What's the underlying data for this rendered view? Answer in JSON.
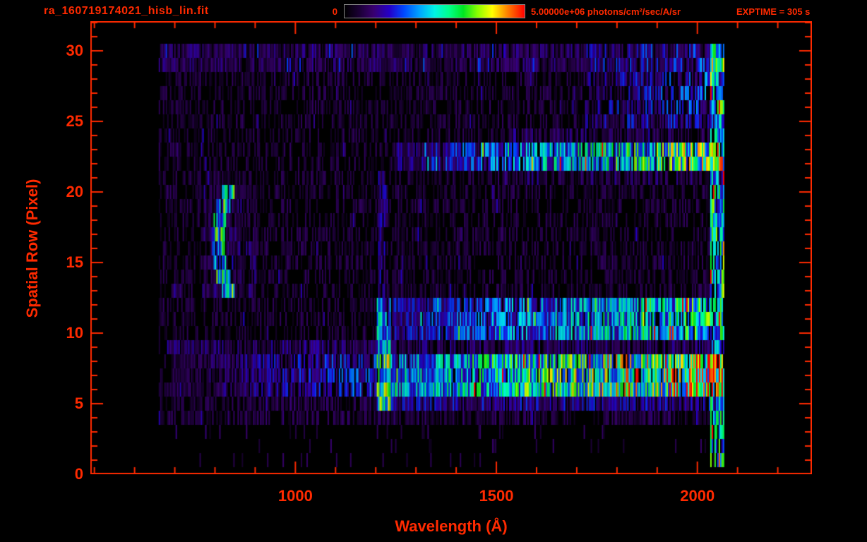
{
  "header": {
    "title": "ra_160719174021_hisb_lin.fit",
    "colorbar_min": "0",
    "colorbar_max": "5.00000e+06 photons/cm²/sec/A/sr",
    "exptime": "EXPTIME = 305 s"
  },
  "chart_data": {
    "type": "heatmap",
    "title": "ra_160719174021_hisb_lin.fit",
    "xlabel": "Wavelength (Å)",
    "ylabel": "Spatial Row (Pixel)",
    "xlim": [
      490,
      2285
    ],
    "ylim": [
      0,
      32.1
    ],
    "xticks": [
      1000,
      1500,
      2000
    ],
    "xtick_minor_step": 100,
    "yticks": [
      0,
      5,
      10,
      15,
      20,
      25,
      30
    ],
    "ytick_minor_step": 1,
    "axis_color": "#ff2a00",
    "colorbar": {
      "min": 0,
      "max": 5000000,
      "min_label": "0",
      "max_label": "5.00000e+06 photons/cm²/sec/A/sr",
      "units": "photons/cm²/sec/A/sr"
    },
    "exptime_seconds": 305,
    "colormap_stops": [
      [
        0.0,
        "#000000"
      ],
      [
        0.08,
        "#1a0033"
      ],
      [
        0.16,
        "#38006e"
      ],
      [
        0.25,
        "#2400c8"
      ],
      [
        0.33,
        "#0048ff"
      ],
      [
        0.42,
        "#00a8ff"
      ],
      [
        0.5,
        "#00f2e4"
      ],
      [
        0.58,
        "#00ff8c"
      ],
      [
        0.66,
        "#00e622"
      ],
      [
        0.74,
        "#8cff00"
      ],
      [
        0.82,
        "#ffff00"
      ],
      [
        0.9,
        "#ff8800"
      ],
      [
        1.0,
        "#ff0000"
      ]
    ],
    "seed": 20160719,
    "grid_cell_angstrom": 3.5,
    "data_extent": {
      "wavelength": [
        660,
        2066
      ],
      "rows": [
        0,
        30
      ]
    },
    "features": [
      {
        "name": "background-speckle",
        "x": [
          660,
          2066
        ],
        "y": [
          4,
          30
        ],
        "base": 0.09,
        "density": 0.5,
        "spike": 0.05
      },
      {
        "name": "bottom-sparse",
        "x": [
          700,
          2060
        ],
        "y": [
          1,
          3
        ],
        "base": 0.11,
        "density": 0.05
      },
      {
        "name": "top-rows-band",
        "x": [
          660,
          2066
        ],
        "y": [
          29,
          30
        ],
        "base": 0.13,
        "density": 0.85,
        "spike": 0.08
      },
      {
        "name": "upper-right-enhance",
        "x": [
          1720,
          2066
        ],
        "y": [
          25,
          30
        ],
        "base": 0.18,
        "end": 0.3,
        "density": 0.55
      },
      {
        "name": "row22-23-band",
        "x": [
          1250,
          2062
        ],
        "y": [
          22,
          23
        ],
        "base": 0.16,
        "end": 0.62,
        "density": 0.95,
        "spike": 0.04
      },
      {
        "name": "row21-24-fringe",
        "x": [
          1500,
          2062
        ],
        "y": [
          21,
          24
        ],
        "base": 0.14,
        "density": 0.4
      },
      {
        "name": "row10-12-band",
        "x": [
          1240,
          2062
        ],
        "y": [
          10,
          12
        ],
        "base": 0.2,
        "end": 0.52,
        "density": 0.95,
        "spike": 0.04
      },
      {
        "name": "row9-faint-band",
        "x": [
          680,
          2062
        ],
        "y": [
          9,
          9
        ],
        "base": 0.15,
        "density": 0.7
      },
      {
        "name": "main-band-rows6-8",
        "x": [
          1210,
          2062
        ],
        "y": [
          6,
          8
        ],
        "base": 0.32,
        "end": 0.74,
        "density": 1,
        "spike": 0.05
      },
      {
        "name": "main-band-left-tail",
        "x": [
          690,
          1210
        ],
        "y": [
          6,
          8
        ],
        "base": 0.1,
        "end": 0.28,
        "density": 0.8
      },
      {
        "name": "row5-line",
        "x": [
          1210,
          2055
        ],
        "y": [
          5,
          5
        ],
        "base": 0.2,
        "density": 0.85
      },
      {
        "name": "row4-speckle",
        "x": [
          680,
          2055
        ],
        "y": [
          4,
          5
        ],
        "base": 0.11,
        "density": 0.35
      },
      {
        "name": "lyman-alpha-core",
        "x": [
          1202,
          1234
        ],
        "y": [
          5,
          8
        ],
        "base": 0.55,
        "density": 1
      },
      {
        "name": "lyman-alpha-upper",
        "x": [
          1202,
          1234
        ],
        "y": [
          9,
          12
        ],
        "base": 0.38,
        "density": 1
      },
      {
        "name": "lyman-alpha-faint-tail",
        "x": [
          1205,
          1230
        ],
        "y": [
          13,
          21
        ],
        "base": 0.17,
        "density": 0.7
      },
      {
        "name": "airglow-arc",
        "arc": true,
        "x0": 806,
        "curve": 2.1,
        "yc": 16.5,
        "width": 34,
        "y": [
          13,
          20
        ],
        "base": 0.5
      },
      {
        "name": "arc-halo",
        "x": [
          770,
          900
        ],
        "y": [
          13,
          20
        ],
        "base": 0.14,
        "density": 0.5
      },
      {
        "name": "right-edge-column",
        "x": [
          2030,
          2066
        ],
        "y": [
          1,
          30
        ],
        "base": 0.5,
        "density": 0.85,
        "spike": 0.1
      },
      {
        "name": "hot-pixels-right",
        "x": [
          1900,
          2062
        ],
        "y": [
          6,
          8
        ],
        "base": 0.85,
        "density": 0.04
      }
    ]
  }
}
